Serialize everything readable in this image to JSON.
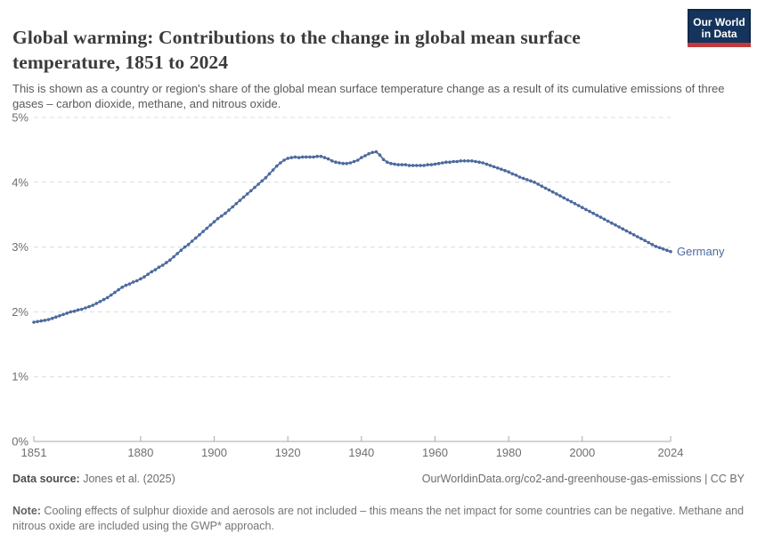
{
  "header": {
    "title": "Global warming: Contributions to the change in global mean surface temperature, 1851 to 2024",
    "subtitle": "This is shown as a country or region's share of the global mean surface temperature change as a result of its cumulative emissions of three gases – carbon dioxide, methane, and nitrous oxide.",
    "logo": {
      "line1": "Our World",
      "line2": "in Data",
      "bg_color": "#15345d",
      "accent_color": "#c1393d"
    }
  },
  "chart_data": {
    "type": "line",
    "title": "Global warming: Contributions to the change in global mean surface temperature, 1851 to 2024",
    "xlabel": "",
    "ylabel": "",
    "xlim": [
      1851,
      2024
    ],
    "ylim": [
      0,
      5
    ],
    "x_ticks": [
      1851,
      1880,
      1900,
      1920,
      1940,
      1960,
      1980,
      2000,
      2024
    ],
    "y_ticks": [
      0,
      1,
      2,
      3,
      4,
      5
    ],
    "y_tick_labels": [
      "0%",
      "1%",
      "2%",
      "3%",
      "4%",
      "5%"
    ],
    "grid": "horizontal-dashed",
    "legend_position": "end-of-line-label",
    "end_label": "Germany",
    "series": [
      {
        "name": "Germany",
        "color": "#4c6a9e",
        "start_year": 1851,
        "end_year": 2024,
        "values": [
          1.84,
          1.85,
          1.86,
          1.87,
          1.88,
          1.9,
          1.92,
          1.94,
          1.96,
          1.98,
          2.0,
          2.01,
          2.03,
          2.04,
          2.06,
          2.08,
          2.1,
          2.13,
          2.16,
          2.19,
          2.22,
          2.26,
          2.3,
          2.34,
          2.38,
          2.41,
          2.43,
          2.46,
          2.48,
          2.51,
          2.54,
          2.58,
          2.62,
          2.65,
          2.69,
          2.72,
          2.76,
          2.8,
          2.85,
          2.9,
          2.95,
          3.0,
          3.04,
          3.09,
          3.14,
          3.19,
          3.24,
          3.29,
          3.34,
          3.39,
          3.44,
          3.48,
          3.52,
          3.57,
          3.62,
          3.67,
          3.72,
          3.77,
          3.82,
          3.87,
          3.92,
          3.97,
          4.02,
          4.07,
          4.13,
          4.19,
          4.25,
          4.3,
          4.34,
          4.37,
          4.38,
          4.39,
          4.38,
          4.39,
          4.39,
          4.39,
          4.39,
          4.4,
          4.4,
          4.38,
          4.36,
          4.33,
          4.31,
          4.3,
          4.29,
          4.29,
          4.3,
          4.32,
          4.34,
          4.38,
          4.41,
          4.44,
          4.46,
          4.47,
          4.42,
          4.35,
          4.31,
          4.29,
          4.28,
          4.27,
          4.27,
          4.27,
          4.26,
          4.26,
          4.26,
          4.26,
          4.26,
          4.27,
          4.27,
          4.28,
          4.29,
          4.3,
          4.31,
          4.31,
          4.32,
          4.32,
          4.33,
          4.33,
          4.33,
          4.33,
          4.32,
          4.31,
          4.3,
          4.28,
          4.26,
          4.24,
          4.22,
          4.2,
          4.18,
          4.16,
          4.13,
          4.11,
          4.08,
          4.06,
          4.04,
          4.02,
          4.0,
          3.97,
          3.94,
          3.91,
          3.88,
          3.85,
          3.82,
          3.79,
          3.76,
          3.73,
          3.7,
          3.67,
          3.64,
          3.61,
          3.58,
          3.55,
          3.52,
          3.49,
          3.46,
          3.43,
          3.4,
          3.37,
          3.34,
          3.31,
          3.28,
          3.25,
          3.22,
          3.19,
          3.16,
          3.13,
          3.1,
          3.07,
          3.04,
          3.01,
          2.99,
          2.97,
          2.95,
          2.93
        ]
      }
    ]
  },
  "footer": {
    "source_label": "Data source:",
    "source_value": " Jones et al. (2025)",
    "cc_text": "OurWorldinData.org/co2-and-greenhouse-gas-emissions | CC BY",
    "note_label": "Note:",
    "note_value": " Cooling effects of sulphur dioxide and aerosols are not included – this means the net impact for some countries can be negative. Methane and nitrous oxide are included using the GWP* approach."
  },
  "colors": {
    "title": "#3b3b3b",
    "subtitle": "#5a5a5a",
    "tick_label": "#6f6f6f",
    "gridline": "#dcdcdc",
    "axis": "#a8a8a8",
    "series_line": "#4c6a9e"
  }
}
